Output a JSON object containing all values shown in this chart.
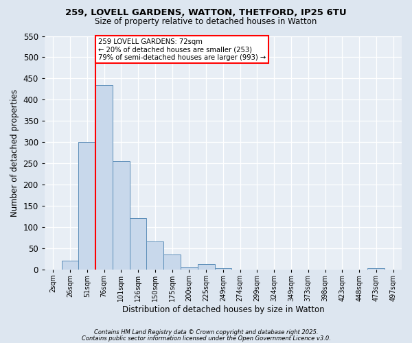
{
  "title1": "259, LOVELL GARDENS, WATTON, THETFORD, IP25 6TU",
  "title2": "Size of property relative to detached houses in Watton",
  "xlabel": "Distribution of detached houses by size in Watton",
  "ylabel": "Number of detached properties",
  "bar_labels": [
    "2sqm",
    "26sqm",
    "51sqm",
    "76sqm",
    "101sqm",
    "126sqm",
    "150sqm",
    "175sqm",
    "200sqm",
    "225sqm",
    "249sqm",
    "274sqm",
    "299sqm",
    "324sqm",
    "349sqm",
    "373sqm",
    "398sqm",
    "423sqm",
    "448sqm",
    "473sqm",
    "497sqm"
  ],
  "bar_values": [
    0,
    20,
    300,
    435,
    255,
    120,
    65,
    35,
    5,
    12,
    2,
    0,
    0,
    0,
    0,
    0,
    0,
    0,
    0,
    2,
    0
  ],
  "bar_color": "#c8d8eb",
  "bar_edge_color": "#5b8db8",
  "vline_color": "red",
  "annotation_title": "259 LOVELL GARDENS: 72sqm",
  "annotation_line1": "← 20% of detached houses are smaller (253)",
  "annotation_line2": "79% of semi-detached houses are larger (993) →",
  "annotation_box_color": "white",
  "annotation_box_edge": "red",
  "ylim": [
    0,
    550
  ],
  "yticks": [
    0,
    50,
    100,
    150,
    200,
    250,
    300,
    350,
    400,
    450,
    500,
    550
  ],
  "footnote1": "Contains HM Land Registry data © Crown copyright and database right 2025.",
  "footnote2": "Contains public sector information licensed under the Open Government Licence v3.0.",
  "bg_color": "#dde6f0",
  "plot_bg_color": "#e8eef5"
}
